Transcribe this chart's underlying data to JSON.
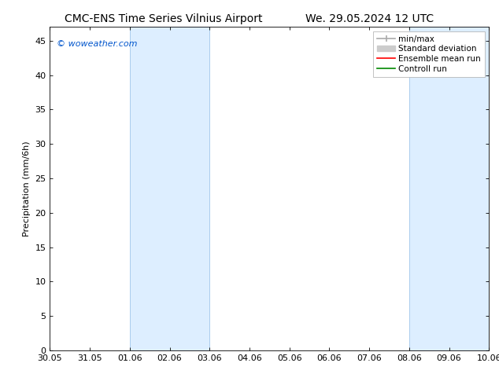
{
  "title_left": "CMC-ENS Time Series Vilnius Airport",
  "title_right": "We. 29.05.2024 12 UTC",
  "ylabel": "Precipitation (mm/6h)",
  "x_tick_labels": [
    "30.05",
    "31.05",
    "01.06",
    "02.06",
    "03.06",
    "04.06",
    "05.06",
    "06.06",
    "07.06",
    "08.06",
    "09.06",
    "10.06"
  ],
  "x_tick_positions": [
    0,
    1,
    2,
    3,
    4,
    5,
    6,
    7,
    8,
    9,
    10,
    11
  ],
  "ylim": [
    0,
    47
  ],
  "yticks": [
    0,
    5,
    10,
    15,
    20,
    25,
    30,
    35,
    40,
    45
  ],
  "shaded_bands": [
    {
      "xmin": 2,
      "xmax": 4,
      "color": "#ddeeff"
    },
    {
      "xmin": 9,
      "xmax": 11,
      "color": "#ddeeff"
    }
  ],
  "band_edge_color": "#aaccee",
  "background_color": "#ffffff",
  "legend_items": [
    {
      "label": "min/max",
      "color": "#aaaaaa",
      "lw": 1.2,
      "ls": "-"
    },
    {
      "label": "Standard deviation",
      "color": "#cccccc",
      "lw": 6,
      "ls": "-"
    },
    {
      "label": "Ensemble mean run",
      "color": "#ff0000",
      "lw": 1.2,
      "ls": "-"
    },
    {
      "label": "Controll run",
      "color": "#008800",
      "lw": 1.2,
      "ls": "-"
    }
  ],
  "watermark_text": "© woweather.com",
  "watermark_color": "#0055cc",
  "watermark_fontsize": 8,
  "title_fontsize": 10,
  "axis_fontsize": 8,
  "ylabel_fontsize": 8,
  "legend_fontsize": 7.5
}
